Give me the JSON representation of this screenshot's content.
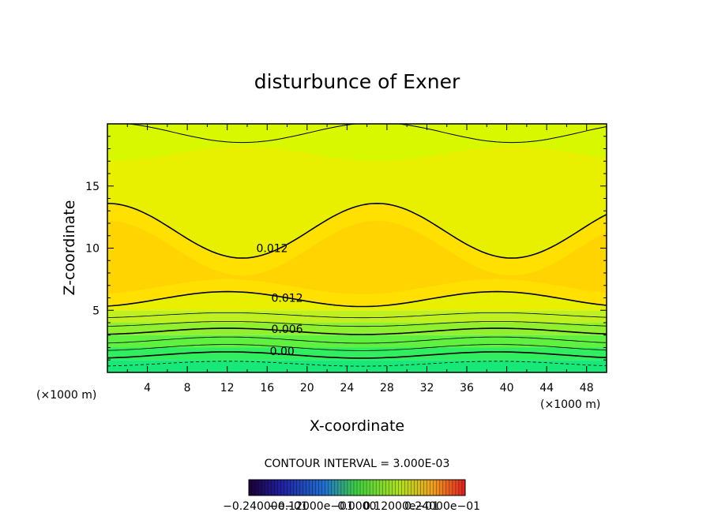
{
  "chart_data": {
    "type": "heatmap",
    "title": "disturbunce of Exner",
    "xlabel": "X-coordinate",
    "ylabel": "Z-coordinate",
    "x_unit_left": "(×1000 m)",
    "x_unit_right": "(×1000 m)",
    "xlim": [
      0,
      50
    ],
    "ylim": [
      0,
      20
    ],
    "x_ticks": [
      "4",
      "8",
      "12",
      "16",
      "20",
      "24",
      "28",
      "32",
      "36",
      "40",
      "44",
      "48"
    ],
    "y_ticks": [
      "5",
      "10",
      "15"
    ],
    "contour_interval_text": "CONTOUR INTERVAL = 3.000E-03",
    "contour_labels": [
      {
        "text": "0.012",
        "x": 16.5,
        "z": 10.0
      },
      {
        "text": "0.012",
        "x": 18.0,
        "z": 6.0
      },
      {
        "text": "0.006",
        "x": 18.0,
        "z": 3.5
      },
      {
        "text": "0.00",
        "x": 17.5,
        "z": 1.7
      }
    ],
    "colorbar_labels_text": "−0.24000e−01",
    "colorbar_labels_text_mid": "−0.12000e−01",
    "colorbar_labels_text_zero": "0.0000",
    "colorbar_labels_text_pos": "0.12000e−01",
    "colorbar_labels_text_max": "0.24000e−01",
    "contour_levels": [
      -0.003,
      0.0,
      0.003,
      0.006,
      0.009,
      0.012
    ],
    "grid": false
  }
}
